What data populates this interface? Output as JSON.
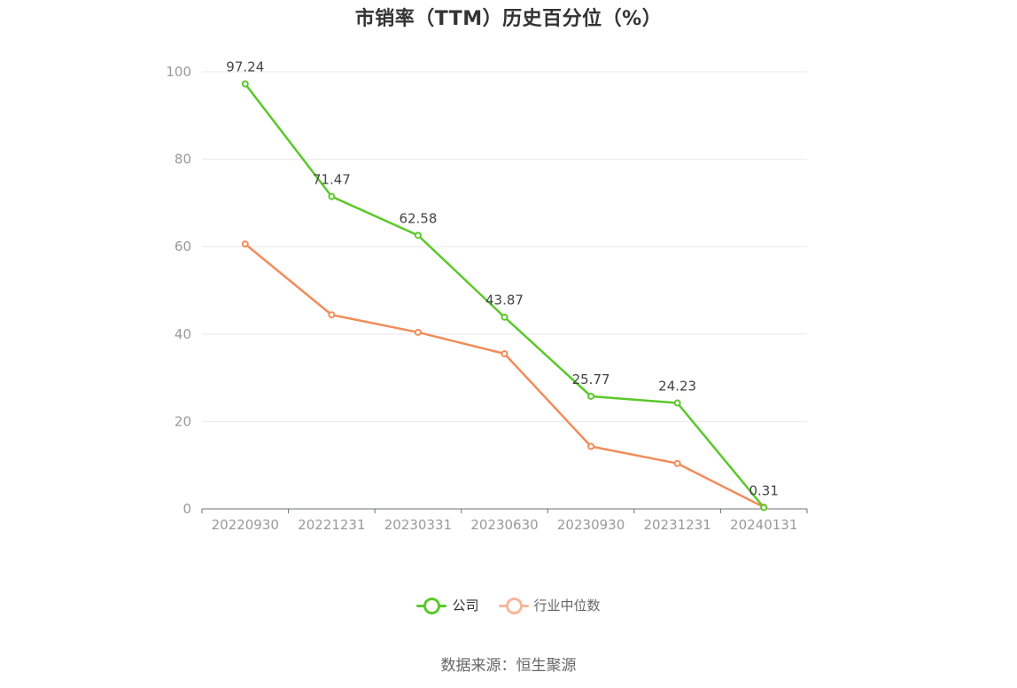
{
  "title": "市销率（TTM）历史百分位（%）",
  "source": "数据来源：恒生聚源",
  "colors": {
    "company": "#5ac82a",
    "industry": "#f28c5a",
    "industry_legend": "#f6b89a",
    "grid": "#e8e8e8",
    "axis": "#6e7079"
  },
  "chart_data": {
    "type": "line",
    "categories": [
      "20220930",
      "20221231",
      "20230331",
      "20230630",
      "20230930",
      "20231231",
      "20240131"
    ],
    "ylim": [
      0,
      100
    ],
    "yticks": [
      0,
      20,
      40,
      60,
      80,
      100
    ],
    "grid": true,
    "legend_position": "bottom",
    "series": [
      {
        "name": "公司",
        "values": [
          97.24,
          71.47,
          62.58,
          43.87,
          25.77,
          24.23,
          0.31
        ],
        "labels": [
          "97.24",
          "71.47",
          "62.58",
          "43.87",
          "25.77",
          "24.23",
          "0.31"
        ],
        "show_labels": true
      },
      {
        "name": "行业中位数",
        "values": [
          60.6,
          44.4,
          40.4,
          35.5,
          14.3,
          10.4,
          0.4
        ],
        "show_labels": false
      }
    ]
  }
}
